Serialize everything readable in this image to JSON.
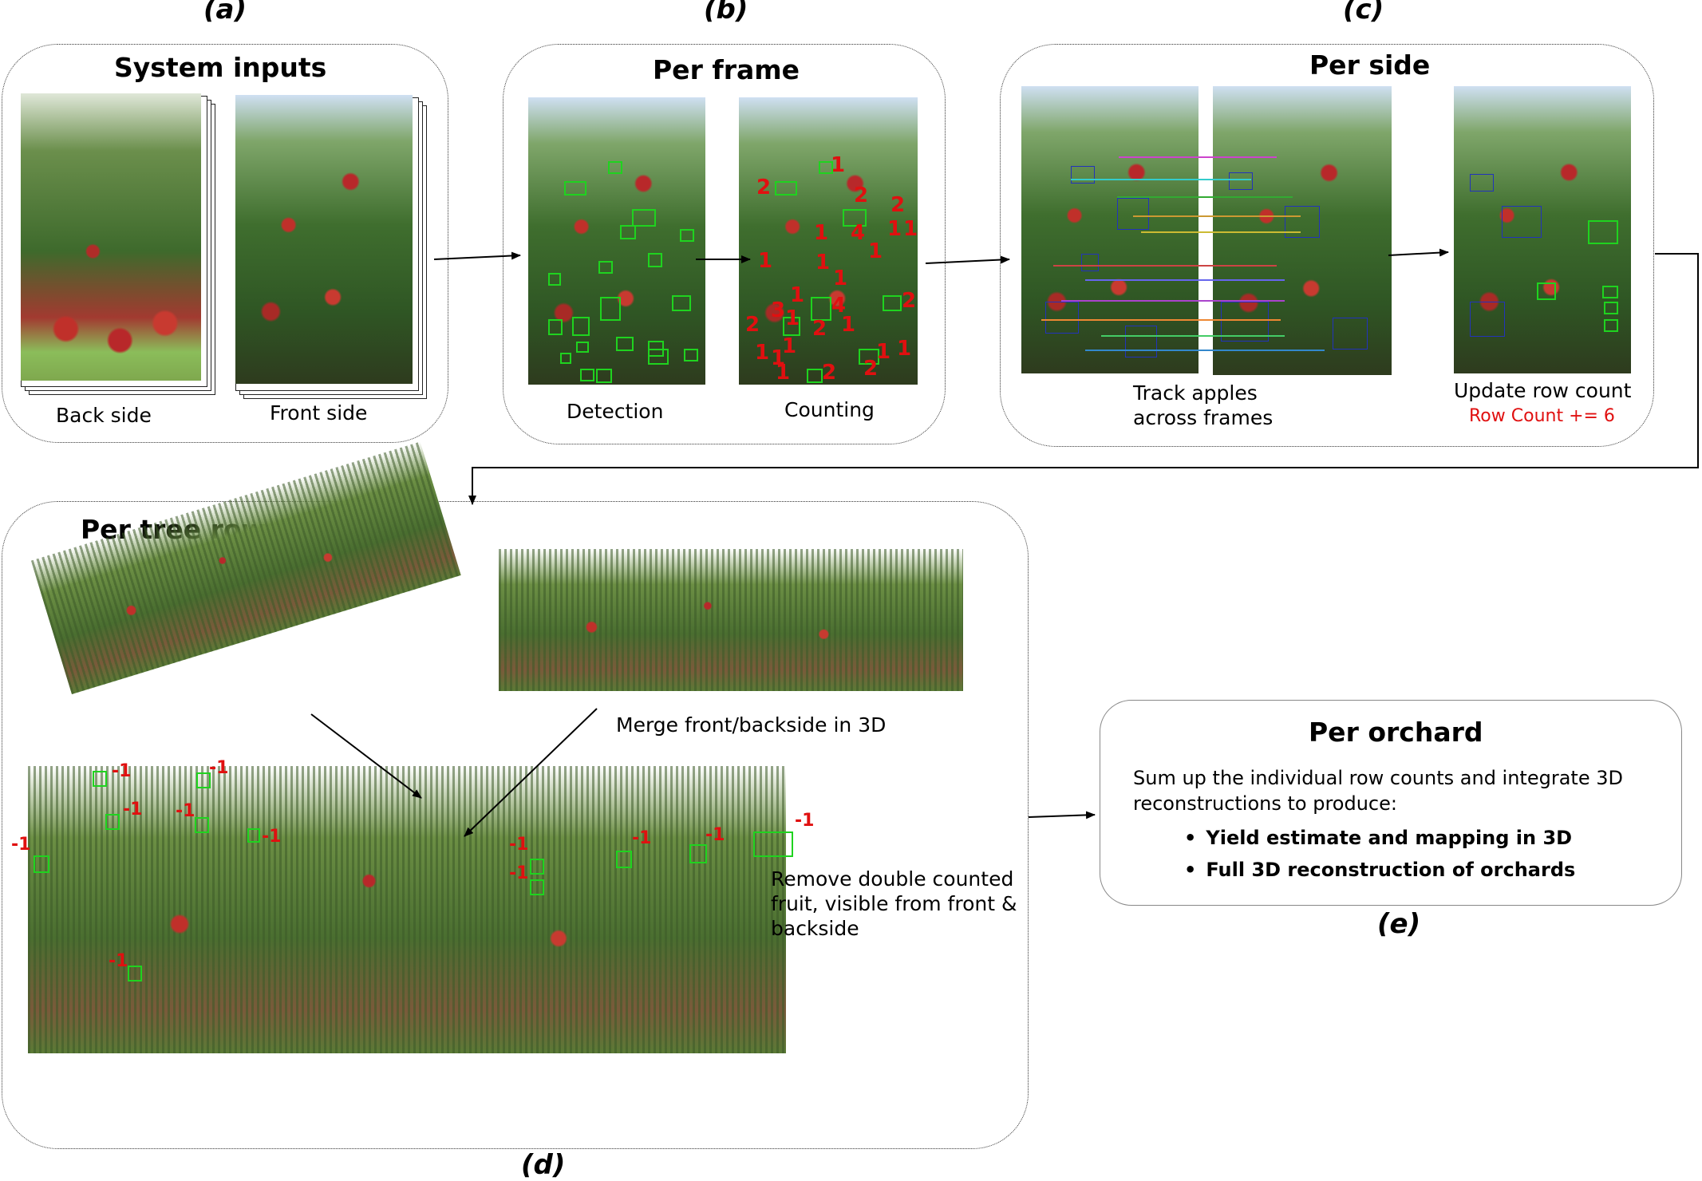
{
  "labels": {
    "a": "(a)",
    "b": "(b)",
    "c": "(c)",
    "d": "(d)",
    "e": "(e)"
  },
  "panel_a": {
    "title": "System inputs",
    "back_caption": "Back side",
    "front_caption": "Front side"
  },
  "panel_b": {
    "title": "Per frame",
    "detection_caption": "Detection",
    "counting_caption": "Counting",
    "counts": [
      "1",
      "2",
      "2",
      "2",
      "1",
      "1",
      "4",
      "1",
      "1",
      "1",
      "1",
      "1",
      "1",
      "2",
      "3",
      "1",
      "4",
      "2",
      "1",
      "2",
      "1",
      "1",
      "1",
      "1",
      "1",
      "2",
      "2",
      "1"
    ]
  },
  "panel_c": {
    "title": "Per side",
    "track_caption_line1": "Track apples",
    "track_caption_line2": "across frames",
    "update_caption": "Update row count",
    "row_count_text": "Row Count += 6",
    "row_count_color": "#e01010"
  },
  "panel_d": {
    "title": "Per tree row",
    "merge_caption": "Merge front/backside in 3D",
    "remove_caption_line1": "Remove double counted",
    "remove_caption_line2": "fruit, visible from front &",
    "remove_caption_line3": "backside",
    "neg_label": "-1"
  },
  "panel_e": {
    "title": "Per orchard",
    "desc_line1": "Sum up the individual row counts and integrate 3D",
    "desc_line2": "reconstructions to produce:",
    "bullets": [
      "Yield estimate and mapping in 3D",
      "Full 3D reconstruction of orchards"
    ]
  },
  "colors": {
    "detection_box": "#1fd31f",
    "tracking_box": "#2233bb",
    "count_text": "#e01010"
  }
}
